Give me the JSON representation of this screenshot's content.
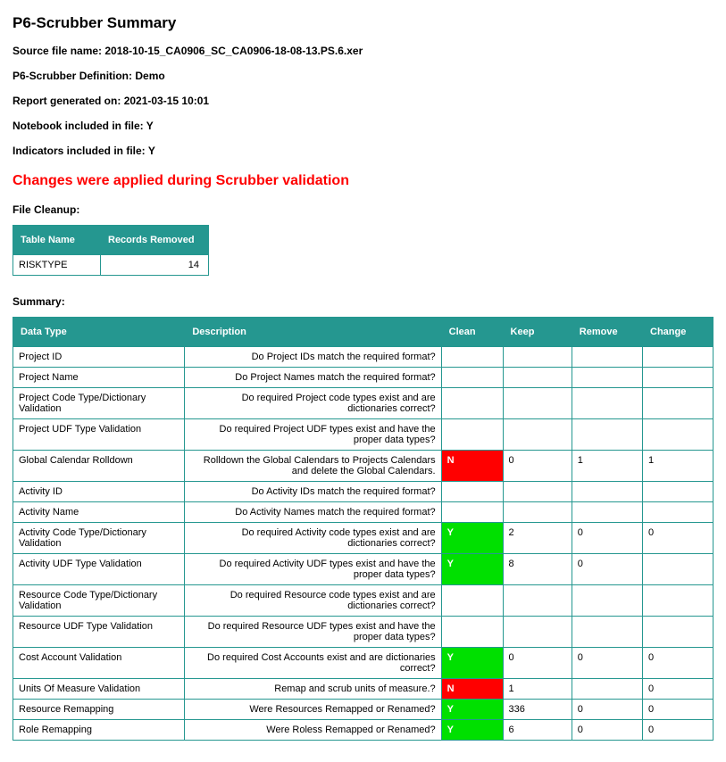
{
  "title": "P6-Scrubber Summary",
  "meta": {
    "sourceLabel": "Source file name:",
    "sourceValue": "2018-10-15_CA0906_SC_CA0906-18-08-13.PS.6.xer",
    "defLabel": "P6-Scrubber Definition:",
    "defValue": "Demo",
    "reportLabel": "Report generated on:",
    "reportValue": "2021-03-15 10:01",
    "notebookLabel": "Notebook included in file:",
    "notebookValue": "Y",
    "indicatorsLabel": "Indicators included in file:",
    "indicatorsValue": "Y"
  },
  "changesText": "Changes were applied during Scrubber validation",
  "cleanup": {
    "heading": "File Cleanup:",
    "columns": [
      "Table Name",
      "Records Removed"
    ],
    "rows": [
      {
        "name": "RISKTYPE",
        "removed": "14"
      }
    ]
  },
  "summary": {
    "heading": "Summary:",
    "columns": [
      "Data Type",
      "Description",
      "Clean",
      "Keep",
      "Remove",
      "Change"
    ],
    "rows": [
      {
        "dt": "Project ID",
        "desc": "Do Project IDs match the required format?",
        "clean": "",
        "keep": "",
        "remove": "",
        "change": ""
      },
      {
        "dt": "Project Name",
        "desc": "Do Project Names match the required format?",
        "clean": "",
        "keep": "",
        "remove": "",
        "change": ""
      },
      {
        "dt": "Project Code Type/Dictionary Validation",
        "desc": "Do required Project code types exist and are dictionaries correct?",
        "clean": "",
        "keep": "",
        "remove": "",
        "change": ""
      },
      {
        "dt": "Project UDF Type Validation",
        "desc": "Do required Project UDF types exist and have the proper data types?",
        "clean": "",
        "keep": "",
        "remove": "",
        "change": ""
      },
      {
        "dt": "Global Calendar Rolldown",
        "desc": "Rolldown the Global Calendars to Projects Calendars and delete the Global Calendars.",
        "clean": "N",
        "keep": "0",
        "remove": "1",
        "change": "1"
      },
      {
        "dt": "Activity ID",
        "desc": "Do Activity IDs match the required format?",
        "clean": "",
        "keep": "",
        "remove": "",
        "change": ""
      },
      {
        "dt": "Activity Name",
        "desc": "Do Activity Names match the required format?",
        "clean": "",
        "keep": "",
        "remove": "",
        "change": ""
      },
      {
        "dt": "Activity Code Type/Dictionary Validation",
        "desc": "Do required Activity code types exist and are dictionaries correct?",
        "clean": "Y",
        "keep": "2",
        "remove": "0",
        "change": "0"
      },
      {
        "dt": "Activity UDF Type Validation",
        "desc": "Do required Activity UDF types exist and have the proper data types?",
        "clean": "Y",
        "keep": "8",
        "remove": "0",
        "change": ""
      },
      {
        "dt": "Resource Code Type/Dictionary Validation",
        "desc": "Do required Resource code types exist and are dictionaries correct?",
        "clean": "",
        "keep": "",
        "remove": "",
        "change": ""
      },
      {
        "dt": "Resource UDF Type Validation",
        "desc": "Do required Resource UDF types exist and have the proper data types?",
        "clean": "",
        "keep": "",
        "remove": "",
        "change": ""
      },
      {
        "dt": "Cost Account Validation",
        "desc": "Do required Cost Accounts exist and are dictionaries correct?",
        "clean": "Y",
        "keep": "0",
        "remove": "0",
        "change": "0"
      },
      {
        "dt": "Units Of Measure Validation",
        "desc": "Remap and scrub units of measure.?",
        "clean": "N",
        "keep": "1",
        "remove": "",
        "change": "0"
      },
      {
        "dt": "Resource Remapping",
        "desc": "Were Resources Remapped or Renamed?",
        "clean": "Y",
        "keep": "336",
        "remove": "0",
        "change": "0"
      },
      {
        "dt": "Role Remapping",
        "desc": "Were Roless Remapped or Renamed?",
        "clean": "Y",
        "keep": "6",
        "remove": "0",
        "change": "0"
      }
    ]
  },
  "colors": {
    "headerBg": "#259790",
    "cleanY": "#00e000",
    "cleanN": "#ff0000"
  }
}
